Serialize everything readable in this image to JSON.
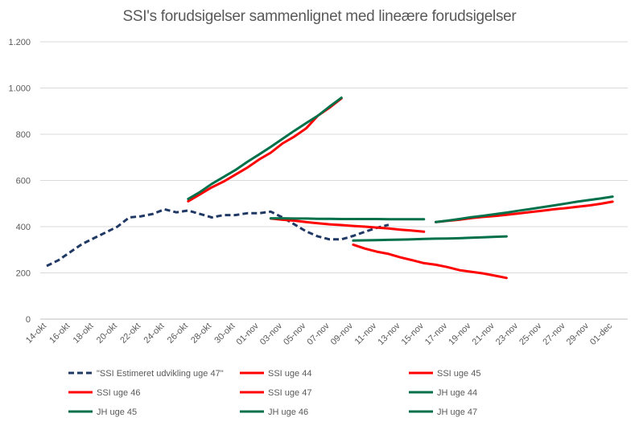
{
  "chart_data": {
    "type": "line",
    "title": "SSI's forudsigelser sammenlignet med lineære forudsigelser",
    "xlabel": "",
    "ylabel": "",
    "ylim": [
      0,
      1200
    ],
    "y_ticks": [
      0,
      200,
      400,
      600,
      800,
      1000,
      1200
    ],
    "y_tick_labels": [
      "0",
      "200",
      "400",
      "600",
      "800",
      "1.000",
      "1.200"
    ],
    "x_ticks": [
      "14-okt",
      "16-okt",
      "18-okt",
      "20-okt",
      "22-okt",
      "24-okt",
      "26-okt",
      "28-okt",
      "30-okt",
      "01-nov",
      "03-nov",
      "05-nov",
      "07-nov",
      "09-nov",
      "11-nov",
      "13-nov",
      "15-nov",
      "17-nov",
      "19-nov",
      "21-nov",
      "23-nov",
      "25-nov",
      "27-nov",
      "29-nov",
      "01-dec"
    ],
    "grid": "horizontal",
    "legend_position": "bottom",
    "series": [
      {
        "name": "\"SSI Estimeret udvikling uge 47\"",
        "color": "#203864",
        "dash": true,
        "x_start": 0,
        "values": [
          230,
          255,
          290,
          325,
          350,
          375,
          400,
          440,
          445,
          455,
          475,
          462,
          470,
          455,
          440,
          450,
          450,
          458,
          458,
          465,
          440,
          410,
          380,
          358,
          345,
          345,
          360,
          378,
          395,
          408
        ]
      },
      {
        "name": "SSI uge 44",
        "color": "#ff0000",
        "dash": false,
        "x_start": 12,
        "values": [
          510,
          540,
          570,
          595,
          625,
          655,
          690,
          720,
          760,
          790,
          825,
          880,
          915,
          955
        ]
      },
      {
        "name": "SSI uge 45",
        "color": "#ff0000",
        "dash": false,
        "x_start": 19,
        "values": [
          435,
          430,
          426,
          420,
          415,
          410,
          407,
          403,
          400,
          396,
          392,
          387,
          383,
          378
        ]
      },
      {
        "name": "SSI uge 46",
        "color": "#ff0000",
        "dash": false,
        "x_start": 26,
        "values": [
          322,
          305,
          292,
          282,
          267,
          255,
          242,
          235,
          225,
          212,
          205,
          198,
          188,
          178
        ]
      },
      {
        "name": "SSI uge 47",
        "color": "#ff0000",
        "dash": false,
        "x_start": 33,
        "values": [
          420,
          425,
          430,
          437,
          442,
          446,
          451,
          457,
          463,
          469,
          475,
          480,
          486,
          492,
          499,
          508
        ]
      },
      {
        "name": "JH uge 44",
        "color": "#00704a",
        "dash": false,
        "x_start": 12,
        "values": [
          520,
          550,
          585,
          615,
          645,
          680,
          712,
          745,
          780,
          815,
          848,
          880,
          920,
          958
        ]
      },
      {
        "name": "JH uge 45",
        "color": "#00704a",
        "dash": false,
        "x_start": 19,
        "values": [
          436,
          436,
          435,
          435,
          434,
          434,
          433,
          433,
          433,
          433,
          432,
          432,
          432,
          432
        ]
      },
      {
        "name": "JH uge 46",
        "color": "#00704a",
        "dash": false,
        "x_start": 26,
        "values": [
          340,
          341,
          342,
          343,
          344,
          345,
          347,
          348,
          349,
          350,
          352,
          354,
          356,
          358
        ]
      },
      {
        "name": "JH uge 47",
        "color": "#00704a",
        "dash": false,
        "x_start": 33,
        "values": [
          420,
          426,
          433,
          441,
          447,
          454,
          461,
          469,
          476,
          484,
          492,
          500,
          508,
          515,
          522,
          530
        ]
      }
    ]
  }
}
